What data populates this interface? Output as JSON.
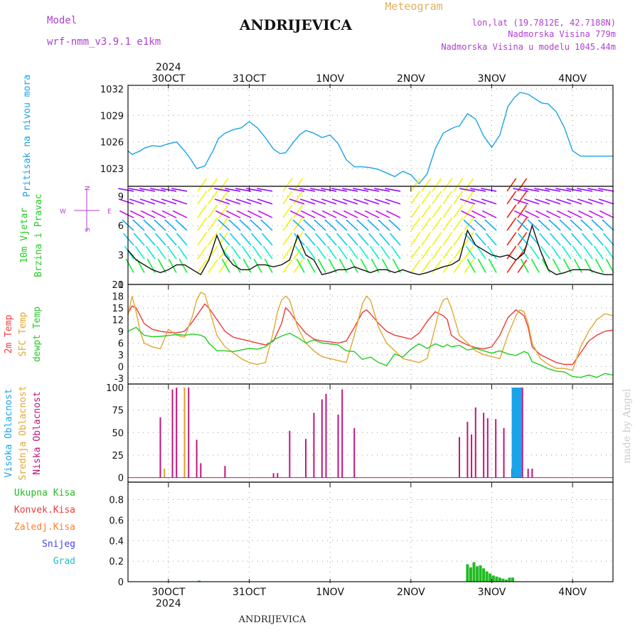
{
  "header": {
    "model_label": "Model",
    "model_name": "wrf-nmm_v3.9.1 e1km",
    "title": "ANDRIJEVICA",
    "product": "Meteogram",
    "lonlat": "lon,lat (19.7812E, 42.7188N)",
    "elevation": "Nadmorska Visina 779m",
    "model_elevation": "Nadmorska Visina u modelu 1045.44m",
    "watermark": "made by Angel",
    "footer_title": "ANDRIJEVICA"
  },
  "colors": {
    "pressure": "#1aa3e8",
    "temp2m": "#ee3a3a",
    "sfc_temp": "#e0a830",
    "dewpt": "#22cc22",
    "low_cloud": "#c0157a",
    "mid_cloud": "#e0a830",
    "high_cloud": "#1aa3e8",
    "total_precip": "#22bb22",
    "conv_precip": "#ee3a3a",
    "frozen_precip": "#ff7f2a",
    "snow": "#4444ee",
    "graupel": "#22c0c0",
    "label_purple": "#b040d0",
    "meteogram_title": "#e0b060"
  },
  "chart_data": [
    {
      "type": "line",
      "panel": "pressure",
      "ylabel_outer": "Pritisak na nivou mora",
      "ylabel_unit": "(hPa)",
      "x_unit": "days from 2024-10-30 00UTC",
      "x_ticks": [
        "30OCT",
        "31OCT",
        "1NOV",
        "2NOV",
        "3NOV",
        "4NOV"
      ],
      "x_year": "2024",
      "xlim": [
        -0.5,
        5.5
      ],
      "ylim": [
        1021.0,
        1032.4
      ],
      "y_ticks": [
        1023,
        1026,
        1029,
        1032
      ],
      "grid": true,
      "series": [
        {
          "name": "Pritisak na nivou mora",
          "x": [
            -0.5,
            -0.45,
            -0.4,
            -0.35,
            -0.3,
            -0.2,
            -0.1,
            0.0,
            0.1,
            0.2,
            0.28,
            0.35,
            0.45,
            0.55,
            0.62,
            0.7,
            0.8,
            0.9,
            1.0,
            1.1,
            1.2,
            1.3,
            1.38,
            1.45,
            1.55,
            1.62,
            1.7,
            1.8,
            1.9,
            2.0,
            2.1,
            2.2,
            2.3,
            2.4,
            2.5,
            2.6,
            2.7,
            2.8,
            2.9,
            3.0,
            3.1,
            3.2,
            3.3,
            3.4,
            3.5,
            3.55,
            3.6,
            3.7,
            3.8,
            3.9,
            4.0,
            4.1,
            4.2,
            4.28,
            4.35,
            4.45,
            4.55,
            4.62,
            4.7,
            4.8,
            4.9,
            5.0,
            5.1,
            5.2,
            5.3,
            5.4,
            5.5
          ],
          "y": [
            1025.0,
            1024.6,
            1024.8,
            1025.0,
            1025.3,
            1025.6,
            1025.5,
            1025.8,
            1026.0,
            1025.0,
            1024.0,
            1023.0,
            1023.3,
            1025.0,
            1026.4,
            1027.0,
            1027.4,
            1027.6,
            1028.3,
            1027.6,
            1026.5,
            1025.2,
            1024.7,
            1024.8,
            1026.0,
            1026.8,
            1027.3,
            1027.0,
            1026.5,
            1026.8,
            1025.8,
            1024.0,
            1023.2,
            1023.2,
            1023.1,
            1022.9,
            1022.5,
            1022.1,
            1022.7,
            1022.3,
            1021.3,
            1022.4,
            1025.2,
            1027.0,
            1027.5,
            1027.7,
            1027.8,
            1029.2,
            1028.6,
            1026.7,
            1025.4,
            1026.8,
            1030.0,
            1031.0,
            1031.6,
            1031.4,
            1030.8,
            1030.4,
            1030.3,
            1029.4,
            1027.6,
            1025.0,
            1024.4,
            1024.4,
            1024.4,
            1024.4,
            1024.4
          ]
        }
      ]
    },
    {
      "type": "line",
      "panel": "wind",
      "ylabel_outer": [
        "10m Vjetar",
        "Brzina i Pravac"
      ],
      "ylabel_unit": "(m/s)",
      "compass_legend": [
        "N",
        "W",
        "E",
        "S"
      ],
      "x_unit": "days from 2024-10-30 00UTC",
      "xlim": [
        -0.5,
        5.5
      ],
      "ylim": [
        0,
        10
      ],
      "y_ticks": [
        0,
        3,
        6,
        9
      ],
      "grid": true,
      "arrow_layers": [
        9.5,
        8.2,
        6.8,
        5.5,
        4.0,
        2.6,
        1.2
      ],
      "series": [
        {
          "name": "Brzina",
          "x": [
            -0.5,
            -0.4,
            -0.3,
            -0.2,
            -0.1,
            0.0,
            0.1,
            0.2,
            0.3,
            0.4,
            0.5,
            0.6,
            0.7,
            0.8,
            0.9,
            1.0,
            1.1,
            1.2,
            1.3,
            1.4,
            1.5,
            1.6,
            1.7,
            1.8,
            1.9,
            2.0,
            2.1,
            2.2,
            2.3,
            2.4,
            2.5,
            2.6,
            2.7,
            2.8,
            2.9,
            3.0,
            3.1,
            3.2,
            3.3,
            3.4,
            3.5,
            3.6,
            3.7,
            3.8,
            3.9,
            4.0,
            4.1,
            4.2,
            4.3,
            4.4,
            4.5,
            4.6,
            4.7,
            4.8,
            4.9,
            5.0,
            5.1,
            5.2,
            5.3,
            5.4,
            5.5
          ],
          "y": [
            3.5,
            2.5,
            2.0,
            1.5,
            1.2,
            1.5,
            2.0,
            2.0,
            1.5,
            1.0,
            2.5,
            5.0,
            3.0,
            2.0,
            1.5,
            1.5,
            2.0,
            2.0,
            1.8,
            2.0,
            2.5,
            5.0,
            3.0,
            2.5,
            1.0,
            1.2,
            1.5,
            1.5,
            1.8,
            1.5,
            1.2,
            1.5,
            1.5,
            1.2,
            1.5,
            1.2,
            1.0,
            1.2,
            1.5,
            1.8,
            2.0,
            2.5,
            5.5,
            4.0,
            3.5,
            3.0,
            2.8,
            3.0,
            2.5,
            3.2,
            6.0,
            3.5,
            1.5,
            1.0,
            1.2,
            1.5,
            1.5,
            1.5,
            1.2,
            1.0,
            1.0
          ]
        }
      ]
    },
    {
      "type": "line",
      "panel": "temperature",
      "ylabel_outer": [
        "2m Temp",
        "SFC Temp",
        "dewpt Temp"
      ],
      "ylabel_unit": "(C)",
      "x_unit": "days from 2024-10-30 00UTC",
      "xlim": [
        -0.5,
        5.5
      ],
      "ylim": [
        -4.5,
        21
      ],
      "y_ticks": [
        -3,
        0,
        3,
        6,
        9,
        12,
        15,
        18,
        21
      ],
      "grid": true,
      "series": [
        {
          "name": "2m Temp",
          "x": [
            -0.5,
            -0.45,
            -0.4,
            -0.35,
            -0.3,
            -0.2,
            -0.1,
            0.0,
            0.1,
            0.2,
            0.3,
            0.4,
            0.45,
            0.5,
            0.6,
            0.7,
            0.8,
            0.9,
            1.0,
            1.1,
            1.2,
            1.3,
            1.4,
            1.45,
            1.5,
            1.6,
            1.7,
            1.8,
            1.9,
            2.0,
            2.1,
            2.2,
            2.3,
            2.4,
            2.45,
            2.5,
            2.6,
            2.7,
            2.8,
            2.9,
            3.0,
            3.1,
            3.2,
            3.3,
            3.4,
            3.45,
            3.5,
            3.6,
            3.7,
            3.8,
            3.9,
            4.0,
            4.1,
            4.2,
            4.3,
            4.4,
            4.45,
            4.5,
            4.6,
            4.7,
            4.8,
            4.9,
            5.0,
            5.1,
            5.2,
            5.3,
            5.4,
            5.5
          ],
          "y": [
            13.5,
            15.5,
            15.0,
            13.0,
            11.0,
            9.5,
            9.0,
            8.7,
            8.6,
            9.0,
            11.5,
            14.5,
            16.0,
            15.0,
            12.0,
            9.0,
            7.5,
            7.0,
            6.5,
            6.0,
            5.5,
            6.5,
            11.0,
            15.0,
            14.0,
            11.0,
            8.5,
            7.0,
            6.5,
            6.3,
            6.0,
            6.5,
            10.0,
            13.8,
            14.5,
            13.5,
            11.0,
            9.0,
            8.0,
            7.5,
            7.0,
            8.5,
            11.5,
            14.0,
            13.0,
            12.0,
            8.0,
            6.5,
            5.5,
            4.8,
            4.5,
            5.0,
            8.0,
            12.5,
            14.5,
            13.0,
            10.0,
            5.0,
            3.0,
            2.0,
            1.0,
            0.5,
            0.5,
            3.5,
            6.5,
            8.0,
            9.0,
            9.3
          ]
        },
        {
          "name": "SFC Temp",
          "x": [
            -0.5,
            -0.45,
            -0.4,
            -0.35,
            -0.3,
            -0.2,
            -0.1,
            0.0,
            0.1,
            0.2,
            0.3,
            0.35,
            0.4,
            0.45,
            0.5,
            0.6,
            0.7,
            0.8,
            0.9,
            1.0,
            1.1,
            1.2,
            1.3,
            1.35,
            1.4,
            1.45,
            1.5,
            1.6,
            1.7,
            1.8,
            1.9,
            2.0,
            2.1,
            2.2,
            2.3,
            2.35,
            2.4,
            2.45,
            2.5,
            2.6,
            2.7,
            2.8,
            2.9,
            3.0,
            3.1,
            3.2,
            3.3,
            3.35,
            3.4,
            3.45,
            3.5,
            3.6,
            3.7,
            3.8,
            3.9,
            4.0,
            4.1,
            4.2,
            4.3,
            4.35,
            4.4,
            4.45,
            4.5,
            4.6,
            4.7,
            4.8,
            4.9,
            5.0,
            5.1,
            5.2,
            5.3,
            5.4,
            5.5
          ],
          "y": [
            13.0,
            18.0,
            14.0,
            9.0,
            6.0,
            5.0,
            4.5,
            9.5,
            8.0,
            7.5,
            13.0,
            17.0,
            19.0,
            18.5,
            15.0,
            8.0,
            5.0,
            3.5,
            2.0,
            1.0,
            0.5,
            1.0,
            9.0,
            14.0,
            17.0,
            18.0,
            17.0,
            10.0,
            6.0,
            4.0,
            2.5,
            2.0,
            1.5,
            1.0,
            8.0,
            12.0,
            16.0,
            18.0,
            17.0,
            10.0,
            6.0,
            4.0,
            2.0,
            1.5,
            1.0,
            2.0,
            10.0,
            14.5,
            17.0,
            17.5,
            15.0,
            8.0,
            6.0,
            4.0,
            3.0,
            2.5,
            2.0,
            8.0,
            13.0,
            14.5,
            14.0,
            11.0,
            6.0,
            2.0,
            0.5,
            -0.5,
            -0.5,
            -1.0,
            5.0,
            9.0,
            12.0,
            13.5,
            13.0
          ]
        },
        {
          "name": "dewpt Temp",
          "x": [
            -0.5,
            -0.45,
            -0.4,
            -0.3,
            -0.2,
            -0.1,
            0.0,
            0.1,
            0.2,
            0.3,
            0.4,
            0.45,
            0.5,
            0.6,
            0.7,
            0.8,
            0.9,
            1.0,
            1.1,
            1.2,
            1.3,
            1.4,
            1.5,
            1.6,
            1.7,
            1.8,
            1.9,
            2.0,
            2.1,
            2.2,
            2.3,
            2.4,
            2.5,
            2.6,
            2.7,
            2.8,
            2.9,
            3.0,
            3.1,
            3.2,
            3.3,
            3.4,
            3.45,
            3.5,
            3.6,
            3.7,
            3.8,
            3.9,
            4.0,
            4.1,
            4.2,
            4.3,
            4.4,
            4.45,
            4.5,
            4.6,
            4.7,
            4.8,
            4.9,
            5.0,
            5.1,
            5.2,
            5.3,
            5.4,
            5.5
          ],
          "y": [
            9.0,
            9.5,
            10.0,
            8.0,
            7.6,
            7.7,
            7.9,
            8.2,
            8.0,
            8.3,
            8.0,
            7.5,
            6.0,
            4.0,
            4.0,
            3.8,
            4.2,
            4.6,
            4.4,
            5.0,
            6.8,
            7.8,
            8.5,
            7.4,
            6.0,
            6.8,
            6.0,
            5.8,
            5.5,
            4.0,
            3.8,
            1.8,
            2.4,
            1.0,
            0.2,
            3.2,
            2.4,
            4.4,
            5.8,
            4.6,
            5.8,
            5.0,
            5.6,
            5.0,
            5.4,
            4.2,
            4.6,
            4.0,
            3.4,
            4.0,
            3.2,
            2.8,
            3.8,
            3.4,
            1.2,
            0.4,
            -0.6,
            -1.2,
            -1.4,
            -2.6,
            -2.8,
            -2.2,
            -2.8,
            -1.8,
            -2.2
          ]
        }
      ]
    },
    {
      "type": "bar",
      "panel": "clouds",
      "ylabel_outer": [
        "Visoka Oblacnost",
        "Srednja Oblacnost",
        "Niska Oblacnost"
      ],
      "ylabel_unit": "(%)",
      "x_unit": "days from 2024-10-30 00UTC",
      "xlim": [
        -0.5,
        5.5
      ],
      "ylim": [
        -5,
        104
      ],
      "y_ticks": [
        0,
        25,
        50,
        75,
        100
      ],
      "grid": true,
      "series": [
        {
          "name": "Niska Oblacnost",
          "x": [
            -0.1,
            0.05,
            0.1,
            0.2,
            0.25,
            0.35,
            0.4,
            0.7,
            1.3,
            1.35,
            1.5,
            1.7,
            1.8,
            1.9,
            1.95,
            2.1,
            2.15,
            2.3,
            3.6,
            3.7,
            3.75,
            3.8,
            3.9,
            3.95,
            4.05,
            4.15,
            4.25,
            4.3,
            4.35,
            4.38,
            4.45,
            4.5
          ],
          "values": [
            67,
            98,
            100,
            100,
            100,
            42,
            16,
            13,
            5,
            5,
            52,
            43,
            72,
            87,
            93,
            70,
            98,
            55,
            45,
            62,
            48,
            78,
            72,
            66,
            65,
            55,
            10,
            100,
            100,
            100,
            10,
            10
          ]
        },
        {
          "name": "Srednja Oblacnost",
          "x": [
            -0.05,
            0.2,
            4.35
          ],
          "values": [
            10,
            100,
            55
          ]
        },
        {
          "name": "Visoka Oblacnost",
          "x": [
            4.26,
            4.28,
            4.3,
            4.32,
            4.34,
            4.36
          ],
          "values": [
            100,
            100,
            100,
            100,
            100,
            100
          ]
        }
      ]
    },
    {
      "type": "bar",
      "panel": "precipitation",
      "ylabel_outer": [
        "Ukupna Kisa",
        "Konvek.Kisa",
        "Zaledj.Kisa",
        "Snijeg",
        "Grad"
      ],
      "ylabel_unit": "1hr Precip (mm)",
      "x_unit": "days from 2024-10-30 00UTC",
      "xlim": [
        -0.5,
        5.5
      ],
      "ylim": [
        0,
        0.97
      ],
      "y_ticks": [
        0,
        0.2,
        0.4,
        0.6,
        0.8
      ],
      "grid": true,
      "series": [
        {
          "name": "Ukupna Kisa",
          "x": [
            0.38,
            3.7,
            3.74,
            3.78,
            3.82,
            3.86,
            3.9,
            3.94,
            3.98,
            4.02,
            4.06,
            4.1,
            4.14,
            4.18,
            4.22,
            4.26
          ],
          "values": [
            0.01,
            0.17,
            0.14,
            0.19,
            0.15,
            0.16,
            0.13,
            0.1,
            0.08,
            0.06,
            0.05,
            0.04,
            0.03,
            0.02,
            0.04,
            0.04
          ]
        }
      ]
    }
  ]
}
